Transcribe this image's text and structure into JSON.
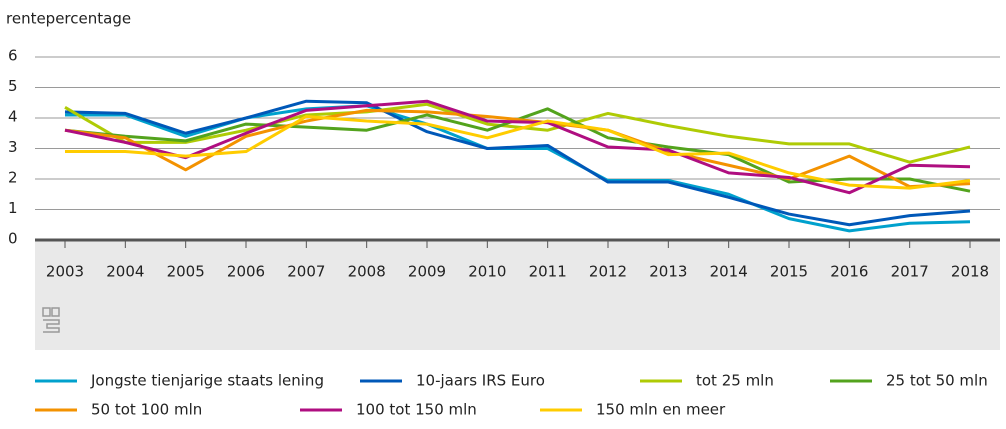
{
  "chart_data": {
    "type": "line",
    "y_label": "rentepercentage",
    "categories": [
      "2003",
      "2004",
      "2005",
      "2006",
      "2007",
      "2008",
      "2009",
      "2010",
      "2011",
      "2012",
      "2013",
      "2014",
      "2015",
      "2016",
      "2017",
      "2018"
    ],
    "ylim": [
      0,
      6
    ],
    "yticks": [
      0,
      1,
      2,
      3,
      4,
      5,
      6
    ],
    "grid": true,
    "series": [
      {
        "name": "Jongste tienjarige staats lening",
        "color": "#00a1cd",
        "values": [
          4.1,
          4.1,
          3.4,
          4.0,
          4.3,
          4.4,
          3.8,
          3.0,
          3.0,
          1.95,
          1.95,
          1.5,
          0.7,
          0.3,
          0.55,
          0.6
        ]
      },
      {
        "name": "10-jaars IRS Euro",
        "color": "#0058b8",
        "values": [
          4.2,
          4.15,
          3.5,
          4.0,
          4.55,
          4.5,
          3.55,
          3.0,
          3.1,
          1.9,
          1.9,
          1.4,
          0.85,
          0.5,
          0.8,
          0.95
        ]
      },
      {
        "name": "tot 25 mln",
        "color": "#afcb05",
        "values": [
          4.35,
          3.2,
          3.2,
          3.6,
          4.1,
          4.2,
          4.45,
          3.8,
          3.6,
          4.15,
          3.75,
          3.4,
          3.15,
          3.15,
          2.55,
          3.05
        ]
      },
      {
        "name": "25 tot 50 mln",
        "color": "#53a31d",
        "values": [
          3.6,
          3.4,
          3.25,
          3.8,
          3.7,
          3.6,
          4.1,
          3.6,
          4.3,
          3.35,
          3.05,
          2.8,
          1.9,
          2.0,
          2.0,
          1.6
        ]
      },
      {
        "name": "50 tot 100 mln",
        "color": "#f39200",
        "values": [
          3.6,
          3.35,
          2.3,
          3.4,
          3.9,
          4.25,
          4.2,
          4.05,
          3.85,
          3.6,
          2.9,
          2.45,
          2.0,
          2.75,
          1.75,
          1.85
        ]
      },
      {
        "name": "100 tot 150 mln",
        "color": "#af0e80",
        "values": [
          3.6,
          3.2,
          2.7,
          3.5,
          4.25,
          4.4,
          4.55,
          3.9,
          3.85,
          3.05,
          2.95,
          2.2,
          2.05,
          1.55,
          2.45,
          2.4
        ]
      },
      {
        "name": "150 mln en meer",
        "color": "#ffcc00",
        "values": [
          2.9,
          2.9,
          2.75,
          2.9,
          4.05,
          3.9,
          3.8,
          3.35,
          3.9,
          3.6,
          2.8,
          2.85,
          2.2,
          1.8,
          1.7,
          1.95
        ]
      }
    ]
  }
}
